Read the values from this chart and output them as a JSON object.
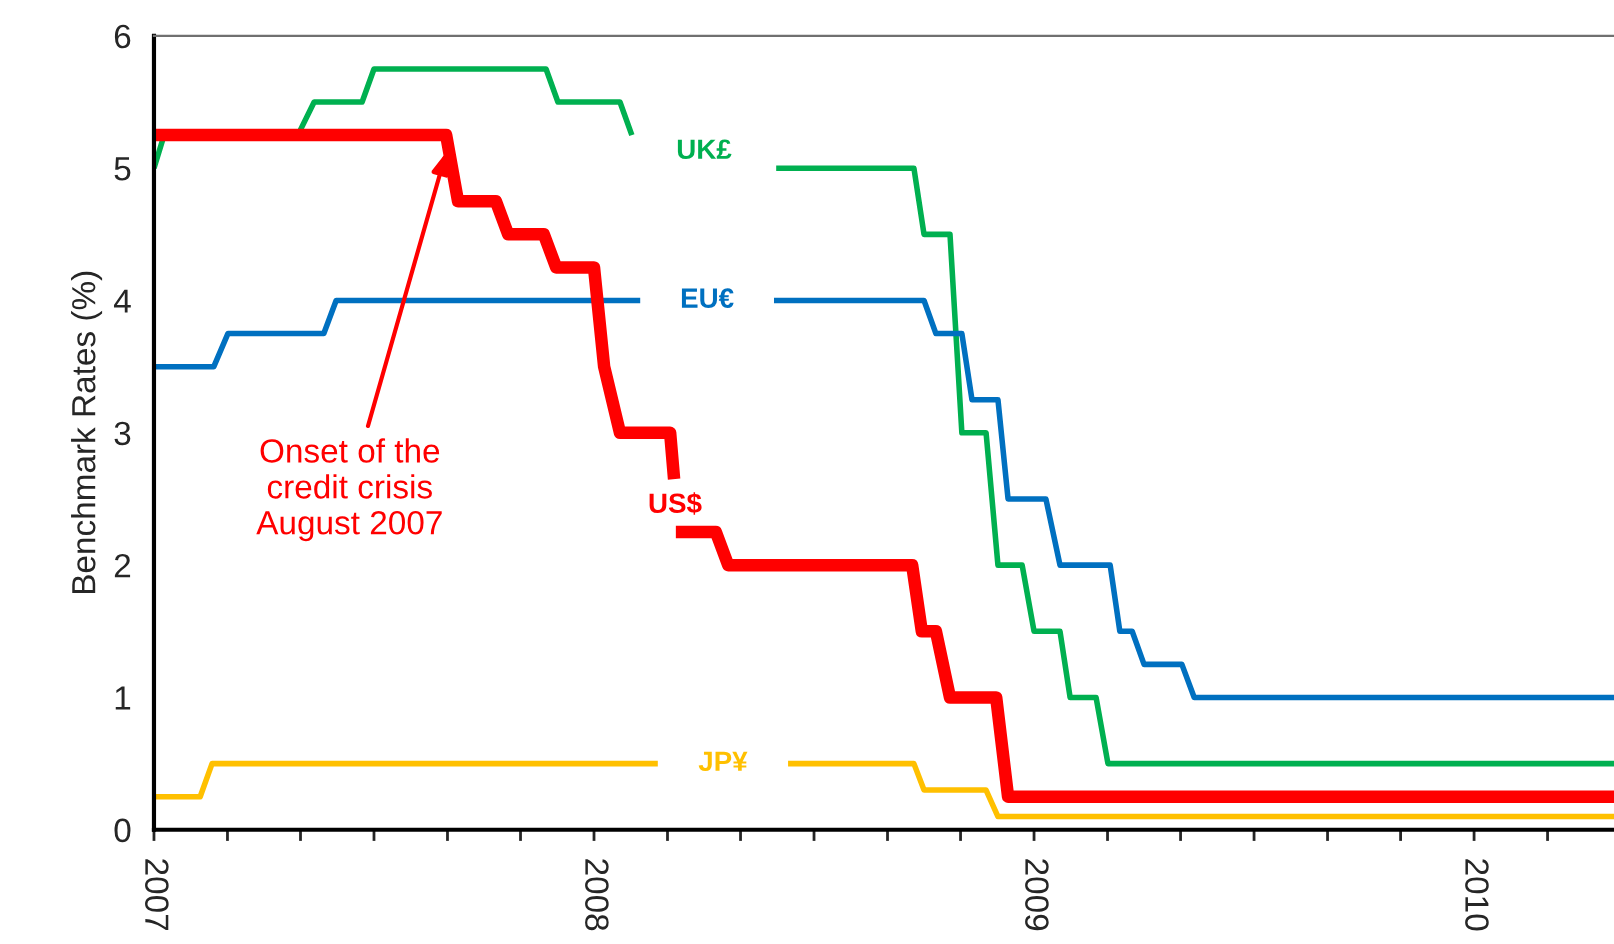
{
  "chart_data": {
    "type": "line",
    "ylabel": "Benchmark Rates (%)",
    "xlim": [
      2007,
      2010.318
    ],
    "ylim": [
      0,
      6
    ],
    "yticks": [
      0,
      1,
      2,
      3,
      4,
      5,
      6
    ],
    "xticks": [
      {
        "value": 2007,
        "label": "2007"
      },
      {
        "value": 2007.167,
        "label": null
      },
      {
        "value": 2007.333,
        "label": null
      },
      {
        "value": 2007.5,
        "label": null
      },
      {
        "value": 2007.667,
        "label": null
      },
      {
        "value": 2007.833,
        "label": null
      },
      {
        "value": 2008,
        "label": "2008"
      },
      {
        "value": 2008.167,
        "label": null
      },
      {
        "value": 2008.333,
        "label": null
      },
      {
        "value": 2008.5,
        "label": null
      },
      {
        "value": 2008.667,
        "label": null
      },
      {
        "value": 2008.833,
        "label": null
      },
      {
        "value": 2009,
        "label": "2009"
      },
      {
        "value": 2009.167,
        "label": null
      },
      {
        "value": 2009.333,
        "label": null
      },
      {
        "value": 2009.5,
        "label": null
      },
      {
        "value": 2009.667,
        "label": null
      },
      {
        "value": 2009.833,
        "label": null
      },
      {
        "value": 2010,
        "label": "2010"
      },
      {
        "value": 2010.167,
        "label": null
      }
    ],
    "grid": false,
    "legend": false,
    "marker": "none",
    "line_style": "solid",
    "series": [
      {
        "name": "UK£",
        "color": "#00b050",
        "x": [
          2007,
          2007.023,
          2007.327,
          2007.364,
          2007.473,
          2007.5,
          2007.891,
          2007.918,
          2008.059,
          2008.086,
          2008.25,
          2008.414,
          2008.727,
          2008.75,
          2008.809,
          2008.836,
          2008.891,
          2008.918,
          2008.973,
          2009.0,
          2009.059,
          2009.082,
          2009.141,
          2009.168,
          2010.318
        ],
        "values": [
          5.0,
          5.25,
          5.25,
          5.5,
          5.5,
          5.75,
          5.75,
          5.5,
          5.5,
          5.25,
          null,
          5.0,
          5.0,
          4.5,
          4.5,
          3.0,
          3.0,
          2.0,
          2.0,
          1.5,
          1.5,
          1.0,
          1.0,
          0.5,
          0.5
        ]
      },
      {
        "name": "EU€",
        "color": "#0070c0",
        "x": [
          2007,
          2007.136,
          2007.168,
          2007.386,
          2007.414,
          2008.105,
          2008.25,
          2008.409,
          2008.75,
          2008.777,
          2008.836,
          2008.859,
          2008.918,
          2008.941,
          2009.027,
          2009.059,
          2009.173,
          2009.195,
          2009.223,
          2009.25,
          2009.336,
          2009.364,
          2010.318
        ],
        "values": [
          3.5,
          3.5,
          3.75,
          3.75,
          4.0,
          4.0,
          null,
          4.0,
          4.0,
          3.75,
          3.75,
          3.25,
          3.25,
          2.5,
          2.5,
          2.0,
          2.0,
          1.5,
          1.5,
          1.25,
          1.25,
          1.0,
          1.0
        ]
      },
      {
        "name": "US$",
        "color": "#ff0000",
        "x": [
          2007,
          2007.664,
          2007.691,
          2007.777,
          2007.805,
          2007.886,
          2007.914,
          2008.0,
          2008.023,
          2008.059,
          2008.173,
          2008.182,
          2008.184,
          2008.186,
          2008.277,
          2008.305,
          2008.723,
          2008.745,
          2008.777,
          2008.809,
          2008.914,
          2008.941,
          2010.318
        ],
        "values": [
          5.25,
          5.25,
          4.75,
          4.75,
          4.5,
          4.5,
          4.25,
          4.25,
          3.5,
          3.0,
          3.0,
          2.65,
          null,
          2.25,
          2.25,
          2.0,
          2.0,
          1.5,
          1.5,
          1.0,
          1.0,
          0.25,
          0.25
        ]
      },
      {
        "name": "JP¥",
        "color": "#ffc000",
        "x": [
          2007,
          2007.105,
          2007.132,
          2008.145,
          2008.3,
          2008.441,
          2008.727,
          2008.75,
          2008.891,
          2008.918,
          2010.318
        ],
        "values": [
          0.25,
          0.25,
          0.5,
          0.5,
          null,
          0.5,
          0.5,
          0.3,
          0.3,
          0.1,
          0.1
        ]
      }
    ],
    "annotations": [
      {
        "text": "Onset of the\ncredit crisis\nAugust 2007",
        "x": 2007.664,
        "y": 5.12
      }
    ]
  }
}
